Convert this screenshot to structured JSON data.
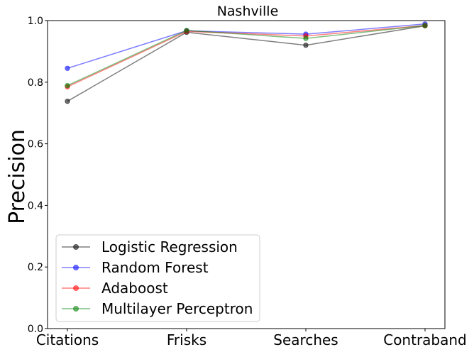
{
  "chart_data": {
    "type": "line",
    "title": "Nashville",
    "xlabel": "",
    "ylabel": "Precision",
    "categories": [
      "Citations",
      "Frisks",
      "Searches",
      "Contraband"
    ],
    "ylim": [
      0.0,
      1.0
    ],
    "yticks": [
      "0.0",
      "0.2",
      "0.4",
      "0.6",
      "0.8",
      "1.0"
    ],
    "grid": false,
    "legend_position": "lower-left",
    "series": [
      {
        "name": "Logistic Regression",
        "color": "#000000",
        "values": [
          0.738,
          0.962,
          0.92,
          0.983
        ]
      },
      {
        "name": "Random Forest",
        "color": "#0000ff",
        "values": [
          0.845,
          0.967,
          0.956,
          0.989
        ]
      },
      {
        "name": "Adaboost",
        "color": "#ff0000",
        "values": [
          0.785,
          0.965,
          0.95,
          0.984
        ]
      },
      {
        "name": "Multilayer Perceptron",
        "color": "#008000",
        "values": [
          0.789,
          0.968,
          0.942,
          0.984
        ]
      }
    ]
  }
}
